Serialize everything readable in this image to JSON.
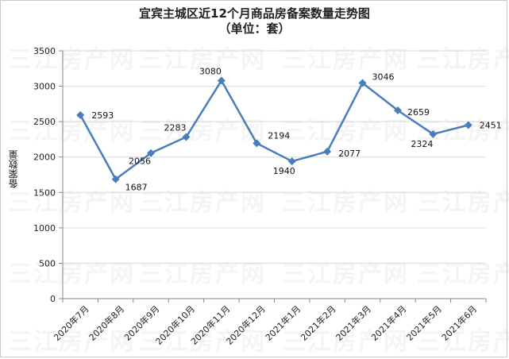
{
  "chart_data": {
    "type": "line",
    "title": "宜宾主城区近12个月商品房备案数量走势图",
    "subtitle": "（单位：套）",
    "ylabel": "备案数量",
    "xlabel": "",
    "categories": [
      "2020年7月",
      "2020年8月",
      "2020年9月",
      "2020年10月",
      "2020年11月",
      "2020年12月",
      "2021年1月",
      "2021年2月",
      "2021年3月",
      "2021年4月",
      "2021年5月",
      "2021年6月"
    ],
    "series": [
      {
        "values": [
          2593,
          1687,
          2056,
          2283,
          3080,
          2194,
          1940,
          2077,
          3046,
          2659,
          2324,
          2451
        ]
      }
    ],
    "ylim": [
      0,
      3500
    ],
    "yticks": [
      0,
      500,
      1000,
      1500,
      2000,
      2500,
      3000,
      3500
    ],
    "grid": true,
    "line_color": "#4a7ebb",
    "marker": "diamond"
  },
  "watermark": "三江房产网"
}
